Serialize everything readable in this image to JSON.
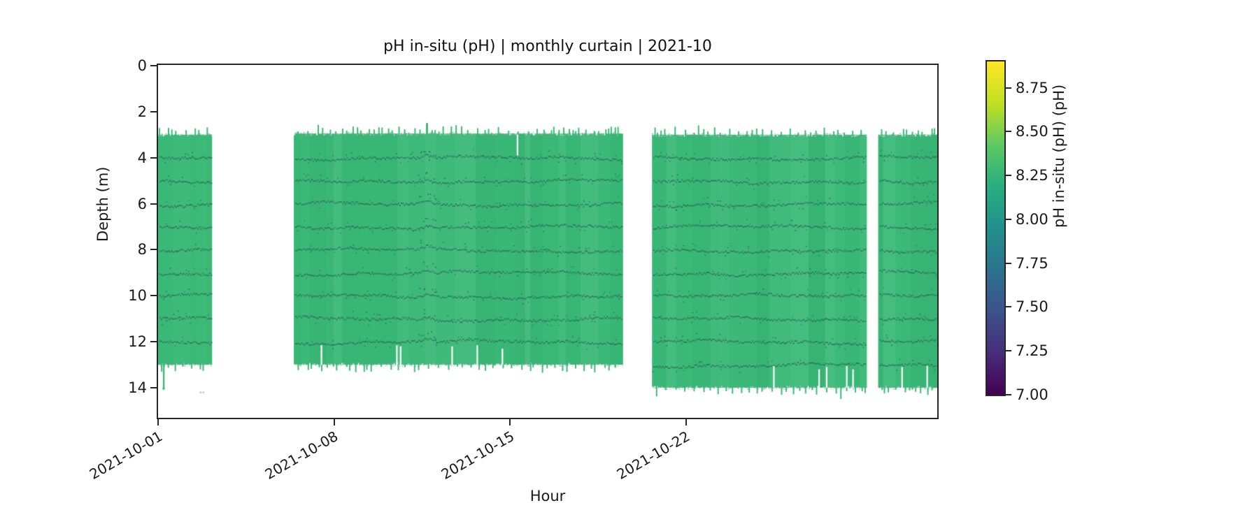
{
  "figure": {
    "title": "pH in-situ (pH) | monthly curtain | 2021-10"
  },
  "chart_data": {
    "type": "heatmap",
    "subtype": "time-depth curtain plot",
    "title": "pH in-situ (pH) | monthly curtain | 2021-10",
    "xlabel": "Hour",
    "ylabel": "Depth (m)",
    "x_ticks": [
      {
        "label": "2021-10-01",
        "day": 0
      },
      {
        "label": "2021-10-08",
        "day": 7
      },
      {
        "label": "2021-10-15",
        "day": 14
      },
      {
        "label": "2021-10-22",
        "day": 21
      }
    ],
    "x_tick_rotation_deg": 30,
    "xlim_days": [
      0,
      31
    ],
    "y_ticks_m": [
      0,
      2,
      4,
      6,
      8,
      10,
      12,
      14
    ],
    "ylim_m": [
      0,
      15.3
    ],
    "y_axis_inverted": true,
    "grid": false,
    "colorbar": {
      "label": "pH in-situ (pH) (pH)",
      "tick_labels": [
        "8.75",
        "8.50",
        "8.25",
        "8.00",
        "7.75",
        "7.50",
        "7.25",
        "7.00"
      ],
      "tick_values": [
        8.75,
        8.5,
        8.25,
        8.0,
        7.75,
        7.5,
        7.25,
        7.0
      ],
      "vmin": 7.0,
      "vmax": 8.9,
      "colormap": "viridis",
      "colormap_stops_bottom_to_top": [
        "#440154",
        "#472d7b",
        "#3b528b",
        "#2c728e",
        "#21918c",
        "#28ae80",
        "#5ec962",
        "#c2df23",
        "#fde725"
      ]
    },
    "field_mean_value_ph": 8.28,
    "blocks": [
      {
        "start_day": 0.0,
        "end_day": 2.15,
        "top_m": 3.0,
        "bottom_m": 13.0,
        "row_depths_m": [
          4,
          5,
          6,
          7,
          8,
          9,
          10,
          11,
          12
        ],
        "bottom_spikes": [
          {
            "day": 0.22,
            "to_m": 14.05
          }
        ]
      },
      {
        "start_day": 5.4,
        "end_day": 18.5,
        "top_m": 2.95,
        "bottom_m": 13.0,
        "row_depths_m": [
          4,
          5,
          6,
          7,
          8,
          9,
          10,
          11,
          12
        ],
        "event_day": 10.7,
        "event_top_m": 2.55
      },
      {
        "start_day": 19.65,
        "end_day": 28.2,
        "top_m": 3.0,
        "bottom_m": 14.0,
        "row_depths_m": [
          4,
          5,
          6,
          7,
          8,
          9,
          10,
          11,
          12,
          13
        ]
      },
      {
        "start_day": 28.65,
        "end_day": 31.0,
        "top_m": 3.0,
        "bottom_m": 14.0,
        "row_depths_m": [
          4,
          5,
          6,
          7,
          8,
          9,
          10,
          11,
          12,
          13
        ]
      }
    ],
    "dropouts": [
      {
        "day": 14.3,
        "from_m": 3.0,
        "to_m": 3.9
      },
      {
        "day": 6.5,
        "from_m": 12.15,
        "to_m": 13.0
      },
      {
        "day": 9.5,
        "from_m": 12.15,
        "to_m": 13.0
      },
      {
        "day": 9.65,
        "from_m": 12.2,
        "to_m": 13.0
      },
      {
        "day": 11.7,
        "from_m": 12.2,
        "to_m": 13.0
      },
      {
        "day": 12.7,
        "from_m": 12.15,
        "to_m": 13.0
      },
      {
        "day": 13.7,
        "from_m": 12.3,
        "to_m": 13.0
      },
      {
        "day": 24.5,
        "from_m": 13.05,
        "to_m": 14.0
      },
      {
        "day": 26.3,
        "from_m": 13.2,
        "to_m": 14.0
      },
      {
        "day": 26.6,
        "from_m": 13.1,
        "to_m": 14.0
      },
      {
        "day": 27.4,
        "from_m": 13.05,
        "to_m": 14.0
      },
      {
        "day": 27.65,
        "from_m": 13.2,
        "to_m": 14.0
      },
      {
        "day": 29.6,
        "from_m": 13.1,
        "to_m": 14.0
      },
      {
        "day": 30.6,
        "from_m": 13.05,
        "to_m": 14.0
      }
    ],
    "colors": {
      "curtain_fill": "#3ab977",
      "fill_stripe_light": "#46c183",
      "fill_stripe_dark": "#2fae70",
      "sensor_dots": "#2b654e",
      "edge_speckle_gray": "#a3a3a3",
      "axis_color": "#262626",
      "background": "#ffffff"
    }
  }
}
